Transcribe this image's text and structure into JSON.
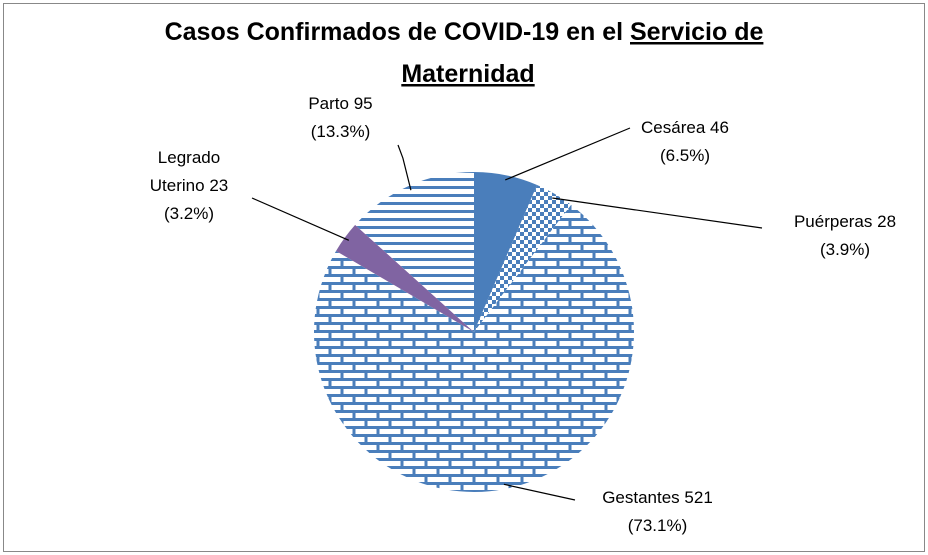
{
  "chart_data": {
    "type": "pie",
    "title": "Casos Confirmados de COVID-19 en el",
    "title_emphasis": [
      "Servicio de",
      "Maternidad"
    ],
    "categories": [
      "Cesárea",
      "Puérperas",
      "Gestantes",
      "Legrado Uterino",
      "Parto"
    ],
    "values": [
      46,
      28,
      521,
      23,
      95
    ],
    "percent_labels": [
      "(6.5%)",
      "(3.9%)",
      "(73.1%)",
      "(3.2%)",
      "(13.3%)"
    ],
    "colors": [
      "#4a7ebb",
      "#4a7ebb",
      "#4a7ebb",
      "#8064a2",
      "#4a7ebb"
    ],
    "patterns": [
      "solid",
      "checker",
      "brick",
      "solid",
      "hlines"
    ]
  }
}
